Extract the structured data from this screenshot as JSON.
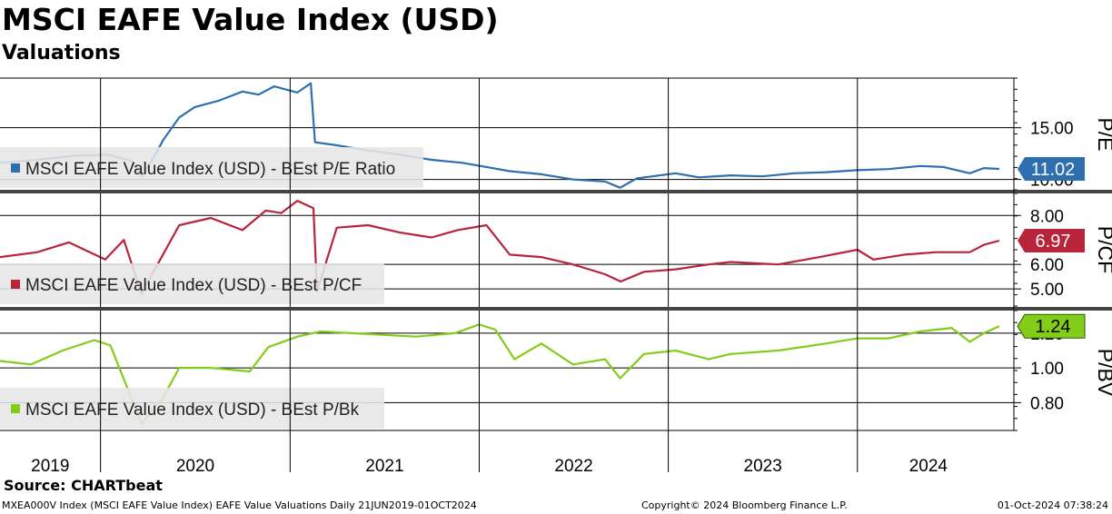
{
  "title": "MSCI EAFE Value Index (USD)",
  "subtitle": "Valuations",
  "source": "Source: CHARTbeat",
  "footer": {
    "left": "MXEA000V Index (MSCI EAFE Value Index) EAFE Value Valuations  Daily 21JUN2019-01OCT2024",
    "middle": "Copyright© 2024 Bloomberg Finance L.P.",
    "right": "01-Oct-2024 07:38:24"
  },
  "chart_data": [
    {
      "type": "line",
      "panel": "P/E",
      "ylabel": "P/E",
      "color": "#2f6fb0",
      "legend": "MSCI EAFE Value Index (USD) - BEst P/E Ratio",
      "yticks": [
        "15.00",
        "10.00"
      ],
      "ylim": [
        9.0,
        19.8
      ],
      "last_value": "11.02",
      "series": [
        {
          "name": "MSCI EAFE Value Index (USD) - BEst P/E Ratio",
          "x": [
            "2019-06-21",
            "2019-09-01",
            "2019-11-15",
            "2020-01-15",
            "2020-03-01",
            "2020-03-20",
            "2020-04-10",
            "2020-05-01",
            "2020-06-01",
            "2020-07-01",
            "2020-08-15",
            "2020-10-01",
            "2020-11-01",
            "2020-12-01",
            "2021-01-15",
            "2021-02-10",
            "2021-02-18",
            "2021-04-01",
            "2021-06-01",
            "2021-08-01",
            "2021-10-01",
            "2021-12-01",
            "2022-01-15",
            "2022-03-01",
            "2022-05-01",
            "2022-07-01",
            "2022-09-01",
            "2022-09-30",
            "2022-11-01",
            "2023-01-15",
            "2023-03-01",
            "2023-05-01",
            "2023-07-01",
            "2023-09-01",
            "2023-11-01",
            "2024-01-01",
            "2024-03-01",
            "2024-05-01",
            "2024-06-15",
            "2024-08-05",
            "2024-09-01",
            "2024-10-01"
          ],
          "values": [
            11.6,
            11.9,
            12.3,
            12.4,
            11.8,
            10.3,
            11.9,
            13.8,
            16.0,
            17.0,
            17.6,
            18.5,
            18.2,
            19.0,
            18.4,
            19.3,
            13.6,
            13.3,
            12.8,
            12.4,
            11.9,
            11.6,
            11.2,
            10.8,
            10.5,
            10.0,
            9.8,
            9.2,
            10.1,
            10.6,
            10.2,
            10.4,
            10.3,
            10.6,
            10.7,
            10.9,
            11.0,
            11.3,
            11.2,
            10.6,
            11.1,
            11.02
          ]
        }
      ]
    },
    {
      "type": "line",
      "panel": "P/CF",
      "ylabel": "P/CF",
      "color": "#b8243a",
      "legend": "MSCI EAFE Value Index (USD) - BEst P/CF",
      "yticks": [
        "8.00",
        "6.00",
        "5.00"
      ],
      "ylim": [
        4.3,
        8.9
      ],
      "last_value": "6.97",
      "series": [
        {
          "name": "MSCI EAFE Value Index (USD) - BEst P/CF",
          "x": [
            "2019-06-21",
            "2019-09-01",
            "2019-11-01",
            "2020-01-10",
            "2020-02-15",
            "2020-03-20",
            "2020-04-20",
            "2020-06-01",
            "2020-08-01",
            "2020-10-01",
            "2020-11-15",
            "2020-12-15",
            "2021-01-15",
            "2021-02-15",
            "2021-02-22",
            "2021-04-01",
            "2021-06-01",
            "2021-08-01",
            "2021-10-01",
            "2021-11-20",
            "2022-01-15",
            "2022-03-01",
            "2022-05-01",
            "2022-07-01",
            "2022-09-01",
            "2022-10-01",
            "2022-11-15",
            "2023-01-15",
            "2023-03-20",
            "2023-05-01",
            "2023-08-01",
            "2023-10-20",
            "2024-01-01",
            "2024-02-01",
            "2024-04-01",
            "2024-06-01",
            "2024-08-05",
            "2024-09-01",
            "2024-10-01"
          ],
          "values": [
            6.3,
            6.5,
            6.9,
            6.2,
            7.0,
            4.8,
            6.0,
            7.6,
            7.9,
            7.4,
            8.2,
            8.1,
            8.6,
            8.3,
            4.9,
            7.5,
            7.6,
            7.3,
            7.1,
            7.4,
            7.6,
            6.4,
            6.3,
            6.0,
            5.6,
            5.3,
            5.7,
            5.8,
            6.0,
            6.1,
            6.0,
            6.3,
            6.6,
            6.2,
            6.4,
            6.5,
            6.5,
            6.8,
            6.97
          ]
        }
      ]
    },
    {
      "type": "line",
      "panel": "P/BV",
      "ylabel": "P/BV",
      "color": "#84cc1a",
      "legend": "MSCI EAFE Value Index (USD) - BEst P/Bk",
      "yticks": [
        "1.20",
        "1.00",
        "0.80"
      ],
      "ylim": [
        0.64,
        1.33
      ],
      "last_value": "1.24",
      "series": [
        {
          "name": "MSCI EAFE Value Index (USD) - BEst P/Bk",
          "x": [
            "2019-06-21",
            "2019-08-20",
            "2019-10-20",
            "2019-12-20",
            "2020-01-20",
            "2020-03-20",
            "2020-05-01",
            "2020-06-01",
            "2020-08-01",
            "2020-10-15",
            "2020-11-20",
            "2021-01-15",
            "2021-03-01",
            "2021-05-01",
            "2021-07-01",
            "2021-09-01",
            "2021-11-15",
            "2022-01-01",
            "2022-02-01",
            "2022-03-10",
            "2022-05-01",
            "2022-07-01",
            "2022-09-01",
            "2022-09-30",
            "2022-11-15",
            "2023-01-15",
            "2023-03-20",
            "2023-05-01",
            "2023-08-01",
            "2023-11-01",
            "2024-01-01",
            "2024-03-01",
            "2024-05-01",
            "2024-07-01",
            "2024-08-05",
            "2024-09-01",
            "2024-10-01"
          ],
          "values": [
            1.04,
            1.02,
            1.1,
            1.16,
            1.13,
            0.68,
            0.83,
            1.0,
            1.0,
            0.98,
            1.12,
            1.18,
            1.21,
            1.2,
            1.19,
            1.18,
            1.2,
            1.25,
            1.22,
            1.05,
            1.14,
            1.02,
            1.05,
            0.94,
            1.08,
            1.1,
            1.05,
            1.08,
            1.1,
            1.14,
            1.17,
            1.17,
            1.21,
            1.23,
            1.15,
            1.2,
            1.24
          ]
        }
      ]
    }
  ],
  "x_axis": {
    "year_labels": [
      "2019",
      "2020",
      "2021",
      "2022",
      "2023",
      "2024"
    ],
    "start": "2019-06-21",
    "end": "2024-10-01"
  }
}
